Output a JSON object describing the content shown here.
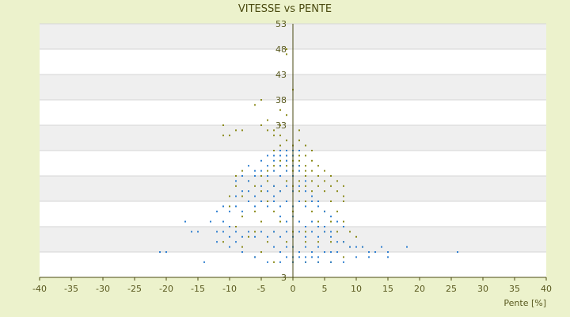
{
  "chart_data": {
    "type": "scatter",
    "title": "VITESSE vs PENTE",
    "xlabel": "Pente [%]",
    "ylabel": "",
    "xlim": [
      -40,
      40
    ],
    "ylim": [
      3,
      53
    ],
    "x_ticks": [
      -40,
      -35,
      -30,
      -25,
      -20,
      -15,
      -10,
      -5,
      0,
      5,
      10,
      15,
      20,
      25,
      30,
      35,
      40
    ],
    "y_tick_labels": [
      {
        "value": 53,
        "label": "53"
      },
      {
        "value": 48,
        "label": "48"
      },
      {
        "value": 43,
        "label": "43"
      },
      {
        "value": 38,
        "label": "38"
      },
      {
        "value": 33,
        "label": "33"
      },
      {
        "value": 3,
        "label": "3"
      }
    ],
    "y_band_edges": [
      3,
      8,
      13,
      18,
      23,
      28,
      33,
      38,
      43,
      48,
      53
    ],
    "grid": true,
    "legend": "none",
    "series": [
      {
        "color": "#8a8a1a",
        "points": [
          [
            -1,
            47
          ],
          [
            -1,
            48
          ],
          [
            0,
            40
          ],
          [
            -2,
            36
          ],
          [
            -5,
            38
          ],
          [
            -6,
            37
          ],
          [
            -1,
            35
          ],
          [
            -4,
            34
          ],
          [
            -2,
            33
          ],
          [
            -5,
            33
          ],
          [
            -11,
            33
          ],
          [
            -10,
            31
          ],
          [
            -9,
            32
          ],
          [
            -11,
            31
          ],
          [
            -8,
            32
          ],
          [
            -3,
            32
          ],
          [
            -4,
            32
          ],
          [
            -3,
            31
          ],
          [
            -2,
            31
          ],
          [
            1,
            32
          ],
          [
            -1,
            30
          ],
          [
            1,
            30
          ],
          [
            -2,
            29
          ],
          [
            0,
            29
          ],
          [
            2,
            29
          ],
          [
            3,
            28
          ],
          [
            -3,
            28
          ],
          [
            -1,
            27
          ],
          [
            0,
            27
          ],
          [
            1,
            27
          ],
          [
            2,
            27
          ],
          [
            -2,
            26
          ],
          [
            -1,
            26
          ],
          [
            0,
            26
          ],
          [
            1,
            26
          ],
          [
            3,
            26
          ],
          [
            -3,
            25
          ],
          [
            -2,
            25
          ],
          [
            -1,
            25
          ],
          [
            0,
            25
          ],
          [
            1,
            25
          ],
          [
            2,
            25
          ],
          [
            4,
            25
          ],
          [
            -4,
            24
          ],
          [
            -3,
            24
          ],
          [
            -1,
            24
          ],
          [
            0,
            24
          ],
          [
            1,
            24
          ],
          [
            2,
            24
          ],
          [
            3,
            24
          ],
          [
            5,
            24
          ],
          [
            -5,
            23
          ],
          [
            -2,
            23
          ],
          [
            0,
            23
          ],
          [
            2,
            23
          ],
          [
            4,
            23
          ],
          [
            6,
            23
          ],
          [
            -8,
            24
          ],
          [
            -9,
            23
          ],
          [
            -7,
            22
          ],
          [
            -4,
            22
          ],
          [
            -1,
            22
          ],
          [
            1,
            22
          ],
          [
            3,
            22
          ],
          [
            5,
            22
          ],
          [
            7,
            22
          ],
          [
            -6,
            21
          ],
          [
            -3,
            21
          ],
          [
            0,
            21
          ],
          [
            2,
            21
          ],
          [
            4,
            21
          ],
          [
            6,
            21
          ],
          [
            8,
            21
          ],
          [
            -9,
            21
          ],
          [
            -8,
            19
          ],
          [
            -5,
            20
          ],
          [
            -2,
            20
          ],
          [
            1,
            20
          ],
          [
            3,
            20
          ],
          [
            5,
            20
          ],
          [
            7,
            20
          ],
          [
            8,
            18
          ],
          [
            -10,
            19
          ],
          [
            -7,
            18
          ],
          [
            -4,
            18
          ],
          [
            -1,
            18
          ],
          [
            2,
            18
          ],
          [
            4,
            18
          ],
          [
            6,
            18
          ],
          [
            8,
            19
          ],
          [
            -10,
            17
          ],
          [
            -6,
            16
          ],
          [
            -3,
            16
          ],
          [
            0,
            16
          ],
          [
            3,
            16
          ],
          [
            5,
            16
          ],
          [
            7,
            16
          ],
          [
            -8,
            15
          ],
          [
            -5,
            14
          ],
          [
            -2,
            14
          ],
          [
            1,
            14
          ],
          [
            4,
            14
          ],
          [
            6,
            14
          ],
          [
            8,
            14
          ],
          [
            -9,
            13
          ],
          [
            -6,
            12
          ],
          [
            -3,
            12
          ],
          [
            0,
            12
          ],
          [
            2,
            12
          ],
          [
            5,
            12
          ],
          [
            7,
            12
          ],
          [
            9,
            12
          ],
          [
            -7,
            11
          ],
          [
            -4,
            10
          ],
          [
            -1,
            10
          ],
          [
            2,
            10
          ],
          [
            4,
            10
          ],
          [
            6,
            10
          ],
          [
            8,
            10
          ],
          [
            10,
            11
          ],
          [
            -11,
            10
          ],
          [
            -8,
            9
          ],
          [
            -5,
            8
          ],
          [
            -2,
            8
          ],
          [
            1,
            8
          ],
          [
            3,
            8
          ],
          [
            5,
            8
          ],
          [
            7,
            8
          ],
          [
            9,
            9
          ],
          [
            11,
            9
          ],
          [
            -6,
            7
          ],
          [
            -3,
            6
          ],
          [
            0,
            6
          ],
          [
            2,
            6
          ],
          [
            4,
            6
          ],
          [
            6,
            6
          ],
          [
            8,
            7
          ],
          [
            13,
            8
          ]
        ]
      },
      {
        "color": "#2f7fd0",
        "points": [
          [
            -21,
            8
          ],
          [
            -20,
            8
          ],
          [
            -14,
            6
          ],
          [
            -16,
            12
          ],
          [
            -15,
            12
          ],
          [
            -12,
            10
          ],
          [
            -17,
            14
          ],
          [
            -13,
            14
          ],
          [
            -11,
            14
          ],
          [
            -10,
            13
          ],
          [
            -9,
            12
          ],
          [
            -12,
            12
          ],
          [
            -11,
            12
          ],
          [
            -10,
            11
          ],
          [
            -9,
            10
          ],
          [
            -8,
            11
          ],
          [
            -7,
            12
          ],
          [
            -6,
            11
          ],
          [
            -5,
            12
          ],
          [
            -4,
            11
          ],
          [
            -3,
            12
          ],
          [
            -2,
            11
          ],
          [
            -1,
            12
          ],
          [
            0,
            11
          ],
          [
            1,
            12
          ],
          [
            2,
            11
          ],
          [
            3,
            12
          ],
          [
            4,
            11
          ],
          [
            5,
            12
          ],
          [
            6,
            11
          ],
          [
            7,
            10
          ],
          [
            8,
            10
          ],
          [
            9,
            9
          ],
          [
            10,
            9
          ],
          [
            11,
            9
          ],
          [
            12,
            8
          ],
          [
            13,
            8
          ],
          [
            14,
            9
          ],
          [
            15,
            8
          ],
          [
            18,
            9
          ],
          [
            26,
            8
          ],
          [
            12,
            7
          ],
          [
            15,
            7
          ],
          [
            10,
            7
          ],
          [
            8,
            6
          ],
          [
            6,
            6
          ],
          [
            4,
            6
          ],
          [
            2,
            6
          ],
          [
            0,
            6
          ],
          [
            -2,
            6
          ],
          [
            -4,
            6
          ],
          [
            -6,
            7
          ],
          [
            -8,
            8
          ],
          [
            -10,
            9
          ],
          [
            -12,
            16
          ],
          [
            -11,
            17
          ],
          [
            -10,
            16
          ],
          [
            -9,
            17
          ],
          [
            -8,
            16
          ],
          [
            -7,
            18
          ],
          [
            -6,
            17
          ],
          [
            -5,
            18
          ],
          [
            -4,
            17
          ],
          [
            -3,
            18
          ],
          [
            -2,
            17
          ],
          [
            -1,
            18
          ],
          [
            0,
            17
          ],
          [
            1,
            18
          ],
          [
            2,
            17
          ],
          [
            3,
            18
          ],
          [
            4,
            17
          ],
          [
            5,
            16
          ],
          [
            6,
            15
          ],
          [
            7,
            14
          ],
          [
            8,
            13
          ],
          [
            -9,
            19
          ],
          [
            -8,
            20
          ],
          [
            -7,
            20
          ],
          [
            -6,
            19
          ],
          [
            -5,
            21
          ],
          [
            -4,
            20
          ],
          [
            -3,
            21
          ],
          [
            -2,
            20
          ],
          [
            -1,
            21
          ],
          [
            0,
            20
          ],
          [
            1,
            21
          ],
          [
            2,
            20
          ],
          [
            3,
            19
          ],
          [
            4,
            18
          ],
          [
            -9,
            22
          ],
          [
            -8,
            23
          ],
          [
            -7,
            22
          ],
          [
            -6,
            23
          ],
          [
            -5,
            24
          ],
          [
            -4,
            23
          ],
          [
            -3,
            24
          ],
          [
            -2,
            23
          ],
          [
            -1,
            24
          ],
          [
            0,
            23
          ],
          [
            1,
            24
          ],
          [
            2,
            22
          ],
          [
            -7,
            25
          ],
          [
            -6,
            24
          ],
          [
            -5,
            26
          ],
          [
            -4,
            25
          ],
          [
            -3,
            26
          ],
          [
            -2,
            25
          ],
          [
            -1,
            26
          ],
          [
            0,
            25
          ],
          [
            1,
            25
          ],
          [
            -4,
            27
          ],
          [
            -3,
            27
          ],
          [
            -2,
            27
          ],
          [
            -1,
            27
          ],
          [
            0,
            27
          ],
          [
            -2,
            28
          ],
          [
            -1,
            28
          ],
          [
            0,
            28
          ],
          [
            1,
            28
          ],
          [
            -3,
            19
          ],
          [
            -2,
            15
          ],
          [
            -1,
            14
          ],
          [
            0,
            15
          ],
          [
            1,
            14
          ],
          [
            2,
            13
          ],
          [
            3,
            14
          ],
          [
            4,
            13
          ],
          [
            5,
            13
          ],
          [
            6,
            12
          ],
          [
            -3,
            9
          ],
          [
            -2,
            8
          ],
          [
            -1,
            9
          ],
          [
            0,
            9
          ],
          [
            1,
            8
          ],
          [
            2,
            9
          ],
          [
            3,
            8
          ],
          [
            4,
            9
          ],
          [
            5,
            8
          ],
          [
            6,
            8
          ],
          [
            7,
            8
          ],
          [
            -1,
            7
          ],
          [
            0,
            7
          ],
          [
            1,
            7
          ],
          [
            2,
            7
          ],
          [
            3,
            7
          ],
          [
            4,
            7
          ]
        ]
      }
    ]
  }
}
